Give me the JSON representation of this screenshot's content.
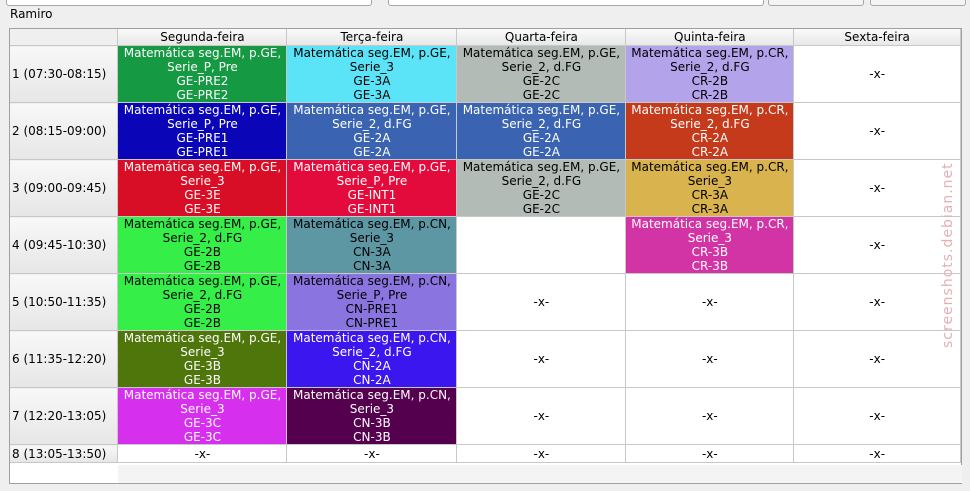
{
  "window": {
    "owner_label": "Ramiro"
  },
  "schedule": {
    "columns": [
      "Segunda-feira",
      "Terça-feira",
      "Quarta-feira",
      "Quinta-feira",
      "Sexta-feira"
    ],
    "rows": [
      {
        "label": "1 (07:30-08:15)",
        "cells": [
          {
            "lines": [
              "Matemática seg.EM, p.GE,",
              "Serie_P, Pre",
              "GE-PRE2",
              "GE-PRE2"
            ],
            "bg": "#159A43",
            "fg": "#ffffff"
          },
          {
            "lines": [
              "Matemática seg.EM, p.GE,",
              "Serie_3",
              "GE-3A",
              "GE-3A"
            ],
            "bg": "#5BE4F8",
            "fg": "#000000"
          },
          {
            "lines": [
              "Matemática seg.EM, p.GE,",
              "Serie_2, d.FG",
              "GE-2C",
              "GE-2C"
            ],
            "bg": "#B3BBB6",
            "fg": "#000000"
          },
          {
            "lines": [
              "Matemática seg.EM, p.CR,",
              "Serie_2, d.FG",
              "CR-2B",
              "CR-2B"
            ],
            "bg": "#B3A3EA",
            "fg": "#000000"
          },
          {
            "lines": [
              "-x-"
            ],
            "bg": "#ffffff",
            "fg": "#000000"
          }
        ]
      },
      {
        "label": "2 (08:15-09:00)",
        "cells": [
          {
            "lines": [
              "Matemática seg.EM, p.GE,",
              "Serie_P, Pre",
              "GE-PRE1",
              "GE-PRE1"
            ],
            "bg": "#0A05B7",
            "fg": "#ffffff"
          },
          {
            "lines": [
              "Matemática seg.EM, p.GE,",
              "Serie_2, d.FG",
              "GE-2A",
              "GE-2A"
            ],
            "bg": "#3A64B2",
            "fg": "#ffffff"
          },
          {
            "lines": [
              "Matemática seg.EM, p.GE,",
              "Serie_2, d.FG",
              "GE-2A",
              "GE-2A"
            ],
            "bg": "#3A64B2",
            "fg": "#ffffff"
          },
          {
            "lines": [
              "Matemática seg.EM, p.CR,",
              "Serie_2, d.FG",
              "CR-2A",
              "CR-2A"
            ],
            "bg": "#C43A1A",
            "fg": "#ffffff"
          },
          {
            "lines": [
              "-x-"
            ],
            "bg": "#ffffff",
            "fg": "#000000"
          }
        ]
      },
      {
        "label": "3 (09:00-09:45)",
        "cells": [
          {
            "lines": [
              "Matemática seg.EM, p.GE,",
              "Serie_3",
              "GE-3E",
              "GE-3E"
            ],
            "bg": "#D70E26",
            "fg": "#ffffff"
          },
          {
            "lines": [
              "Matemática seg.EM, p.GE,",
              "Serie_P, Pre",
              "GE-INT1",
              "GE-INT1"
            ],
            "bg": "#E30B3B",
            "fg": "#ffffff"
          },
          {
            "lines": [
              "Matemática seg.EM, p.GE,",
              "Serie_2, d.FG",
              "GE-2C",
              "GE-2C"
            ],
            "bg": "#B3BBB6",
            "fg": "#000000"
          },
          {
            "lines": [
              "Matemática seg.EM, p.CR,",
              "Serie_3",
              "CR-3A",
              "CR-3A"
            ],
            "bg": "#D8B34E",
            "fg": "#000000"
          },
          {
            "lines": [
              "-x-"
            ],
            "bg": "#ffffff",
            "fg": "#000000"
          }
        ]
      },
      {
        "label": "4 (09:45-10:30)",
        "cells": [
          {
            "lines": [
              "Matemática seg.EM, p.GE,",
              "Serie_2, d.FG",
              "GE-2B",
              "GE-2B"
            ],
            "bg": "#36EE48",
            "fg": "#000000"
          },
          {
            "lines": [
              "Matemática seg.EM, p.CN,",
              "Serie_3",
              "CN-3A",
              "CN-3A"
            ],
            "bg": "#5E97A4",
            "fg": "#000000"
          },
          {
            "lines": [],
            "bg": "#ffffff",
            "fg": "#000000"
          },
          {
            "lines": [
              "Matemática seg.EM, p.CR,",
              "Serie_3",
              "CR-3B",
              "CR-3B"
            ],
            "bg": "#D233A5",
            "fg": "#ffffff"
          },
          {
            "lines": [
              "-x-"
            ],
            "bg": "#ffffff",
            "fg": "#000000"
          }
        ]
      },
      {
        "label": "5 (10:50-11:35)",
        "cells": [
          {
            "lines": [
              "Matemática seg.EM, p.GE,",
              "Serie_2, d.FG",
              "GE-2B",
              "GE-2B"
            ],
            "bg": "#36EE48",
            "fg": "#000000"
          },
          {
            "lines": [
              "Matemática seg.EM, p.CN,",
              "Serie_P, Pre",
              "CN-PRE1",
              "CN-PRE1"
            ],
            "bg": "#8A74E0",
            "fg": "#000000"
          },
          {
            "lines": [
              "-x-"
            ],
            "bg": "#ffffff",
            "fg": "#000000"
          },
          {
            "lines": [
              "-x-"
            ],
            "bg": "#ffffff",
            "fg": "#000000"
          },
          {
            "lines": [
              "-x-"
            ],
            "bg": "#ffffff",
            "fg": "#000000"
          }
        ]
      },
      {
        "label": "6 (11:35-12:20)",
        "cells": [
          {
            "lines": [
              "Matemática seg.EM, p.GE,",
              "Serie_3",
              "GE-3B",
              "GE-3B"
            ],
            "bg": "#4E760B",
            "fg": "#ffffff"
          },
          {
            "lines": [
              "Matemática seg.EM, p.CN,",
              "Serie_2, d.FG",
              "CN-2A",
              "CN-2A"
            ],
            "bg": "#3B16EE",
            "fg": "#ffffff"
          },
          {
            "lines": [
              "-x-"
            ],
            "bg": "#ffffff",
            "fg": "#000000"
          },
          {
            "lines": [
              "-x-"
            ],
            "bg": "#ffffff",
            "fg": "#000000"
          },
          {
            "lines": [
              "-x-"
            ],
            "bg": "#ffffff",
            "fg": "#000000"
          }
        ]
      },
      {
        "label": "7 (12:20-13:05)",
        "cells": [
          {
            "lines": [
              "Matemática seg.EM, p.GE,",
              "Serie_3",
              "GE-3C",
              "GE-3C"
            ],
            "bg": "#D630EE",
            "fg": "#ffffff"
          },
          {
            "lines": [
              "Matemática seg.EM, p.CN,",
              "Serie_3",
              "CN-3B",
              "CN-3B"
            ],
            "bg": "#55004E",
            "fg": "#ffffff"
          },
          {
            "lines": [
              "-x-"
            ],
            "bg": "#ffffff",
            "fg": "#000000"
          },
          {
            "lines": [
              "-x-"
            ],
            "bg": "#ffffff",
            "fg": "#000000"
          },
          {
            "lines": [
              "-x-"
            ],
            "bg": "#ffffff",
            "fg": "#000000"
          }
        ]
      },
      {
        "label": "8 (13:05-13:50)",
        "cells": [
          {
            "lines": [
              "-x-"
            ],
            "bg": "#ffffff",
            "fg": "#000000"
          },
          {
            "lines": [
              "-x-"
            ],
            "bg": "#ffffff",
            "fg": "#000000"
          },
          {
            "lines": [
              "-x-"
            ],
            "bg": "#ffffff",
            "fg": "#000000"
          },
          {
            "lines": [
              "-x-"
            ],
            "bg": "#ffffff",
            "fg": "#000000"
          },
          {
            "lines": [
              "-x-"
            ],
            "bg": "#ffffff",
            "fg": "#000000"
          }
        ]
      }
    ]
  },
  "watermark": "screenshots.debian.net"
}
